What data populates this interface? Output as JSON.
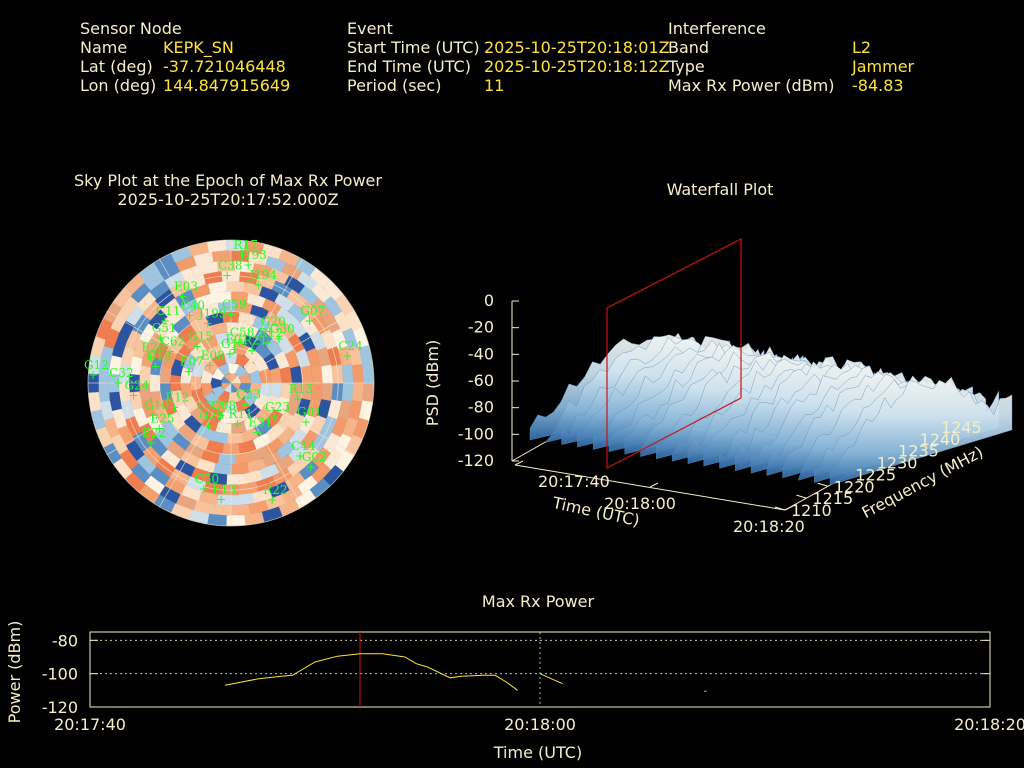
{
  "header": {
    "sensor": {
      "title": "Sensor Node",
      "rows": [
        {
          "label": "Name",
          "value": "KEPK_SN"
        },
        {
          "label": "Lat (deg)",
          "value": "-37.721046448"
        },
        {
          "label": "Lon (deg)",
          "value": "144.847915649"
        }
      ]
    },
    "event": {
      "title": "Event",
      "rows": [
        {
          "label": "Start Time (UTC)",
          "value": "2025-10-25T20:18:01Z"
        },
        {
          "label": "End Time (UTC)",
          "value": "2025-10-25T20:18:12Z"
        },
        {
          "label": "Period (sec)",
          "value": "11"
        }
      ]
    },
    "interference": {
      "title": "Interference",
      "rows": [
        {
          "label": "Band",
          "value": "L2"
        },
        {
          "label": "Type",
          "value": "Jammer"
        },
        {
          "label": "Max Rx Power (dBm)",
          "value": "-84.83"
        }
      ]
    }
  },
  "skyplot": {
    "title_line1": "Sky Plot at the Epoch of Max Rx Power",
    "title_line2": "2025-10-25T20:17:52.000Z"
  },
  "waterfall": {
    "title": "Waterfall Plot",
    "z_label": "PSD (dBm)",
    "x_label": "Time (UTC)",
    "y_label": "Frequency (MHz)"
  },
  "maxpower": {
    "title": "Max Rx Power",
    "ylabel": "Power (dBm)",
    "xlabel": "Time (UTC)"
  },
  "colors": {
    "background": "#000000",
    "label_text": "#f5efc8",
    "value_text": "#ffe23a",
    "satellite_label": "#22ff22",
    "marker_line": "#cc1111",
    "power_line": "#ffe23a",
    "plot_frame": "#f5efc8"
  },
  "chart_data": [
    {
      "type": "scatter",
      "name": "skyplot",
      "satellites": [
        {
          "id": "R17",
          "az": 5,
          "el": 88
        },
        {
          "id": "J193",
          "az": 8,
          "el": 82
        },
        {
          "id": "C38",
          "az": -2,
          "el": 74
        },
        {
          "id": "J194",
          "az": 15,
          "el": 70
        },
        {
          "id": "E03",
          "az": -28,
          "el": 68
        },
        {
          "id": "G07",
          "az": 50,
          "el": 68
        },
        {
          "id": "C11",
          "az": -45,
          "el": 62
        },
        {
          "id": "C40",
          "az": -30,
          "el": 55
        },
        {
          "id": "J199",
          "az": -20,
          "el": 45
        },
        {
          "id": "C59",
          "az": 0,
          "el": 48
        },
        {
          "id": "G51",
          "az": -55,
          "el": 57
        },
        {
          "id": "C62",
          "az": -60,
          "el": 47
        },
        {
          "id": "G20",
          "az": 35,
          "el": 45
        },
        {
          "id": "G30",
          "az": 45,
          "el": 45
        },
        {
          "id": "E26",
          "az": -70,
          "el": 57
        },
        {
          "id": "G18",
          "az": -75,
          "el": 52
        },
        {
          "id": "G15",
          "az": -40,
          "el": 35
        },
        {
          "id": "C58",
          "az": 10,
          "el": 30
        },
        {
          "id": "E01",
          "az": 5,
          "el": 25
        },
        {
          "id": "G11",
          "az": -2,
          "el": 22
        },
        {
          "id": "R21",
          "az": 30,
          "el": 28
        },
        {
          "id": "R12",
          "az": 40,
          "el": 38
        },
        {
          "id": "G24",
          "az": -95,
          "el": 65
        },
        {
          "id": "C24",
          "az": 75,
          "el": 80
        },
        {
          "id": "G12",
          "az": -85,
          "el": 92
        },
        {
          "id": "E08",
          "az": -45,
          "el": 20
        },
        {
          "id": "C32",
          "az": -88,
          "el": 75
        },
        {
          "id": "E07",
          "az": -70,
          "el": 30
        },
        {
          "id": "G10",
          "az": -110,
          "el": 55
        },
        {
          "id": "E12",
          "az": -110,
          "el": 40
        },
        {
          "id": "C27",
          "az": -140,
          "el": 25
        },
        {
          "id": "C08",
          "az": -160,
          "el": 20
        },
        {
          "id": "C20",
          "az": -150,
          "el": 30
        },
        {
          "id": "R13",
          "az": 100,
          "el": 45
        },
        {
          "id": "R11",
          "az": 170,
          "el": 25
        },
        {
          "id": "C23",
          "az": 140,
          "el": 15
        },
        {
          "id": "E31",
          "az": 150,
          "el": 35
        },
        {
          "id": "G23",
          "az": 125,
          "el": 35
        },
        {
          "id": "G01",
          "az": 115,
          "el": 55
        },
        {
          "id": "E25",
          "az": -120,
          "el": 55
        },
        {
          "id": "E22",
          "az": -125,
          "el": 65
        },
        {
          "id": "C44",
          "az": 135,
          "el": 65
        },
        {
          "id": "G02",
          "az": 135,
          "el": 75
        },
        {
          "id": "C50",
          "az": -165,
          "el": 70
        },
        {
          "id": "E13",
          "az": -175,
          "el": 75
        },
        {
          "id": "R22",
          "az": 160,
          "el": 80
        }
      ]
    },
    {
      "type": "area",
      "name": "waterfall",
      "x_ticks": [
        "20:17:40",
        "20:18:00",
        "20:18:20"
      ],
      "y_ticks": [
        "1210",
        "1215",
        "1220",
        "1225",
        "1230",
        "1235",
        "1240",
        "1245"
      ],
      "z_ticks": [
        "0",
        "-20",
        "-40",
        "-60",
        "-80",
        "-100",
        "-120"
      ],
      "zlim": [
        -120,
        0
      ],
      "ylim": [
        1210,
        1245
      ],
      "marker_time": "20:17:52"
    },
    {
      "type": "line",
      "name": "max_rx_power",
      "x_ticks": [
        "20:17:40",
        "20:18:00",
        "20:18:20"
      ],
      "y_ticks": [
        "-80",
        "-100",
        "-120"
      ],
      "xlim_sec": [
        0,
        40
      ],
      "ylim": [
        -120,
        -75
      ],
      "grid": true,
      "marker_sec": 12,
      "segments": [
        [
          [
            6,
            -107
          ],
          [
            7.5,
            -103
          ],
          [
            8.5,
            -101.5
          ],
          [
            9,
            -101
          ],
          [
            10,
            -93
          ],
          [
            11,
            -89.5
          ],
          [
            12,
            -88
          ],
          [
            13,
            -88
          ],
          [
            14,
            -90
          ],
          [
            14.5,
            -94
          ],
          [
            15,
            -96
          ],
          [
            16,
            -102.5
          ],
          [
            16.5,
            -101.5
          ],
          [
            17.5,
            -101
          ],
          [
            18,
            -101
          ],
          [
            18.5,
            -105
          ],
          [
            19,
            -110
          ]
        ],
        [
          [
            20,
            -100
          ],
          [
            21,
            -106
          ]
        ],
        [
          [
            27.3,
            -110.5
          ],
          [
            27.4,
            -110.5
          ]
        ]
      ]
    }
  ]
}
